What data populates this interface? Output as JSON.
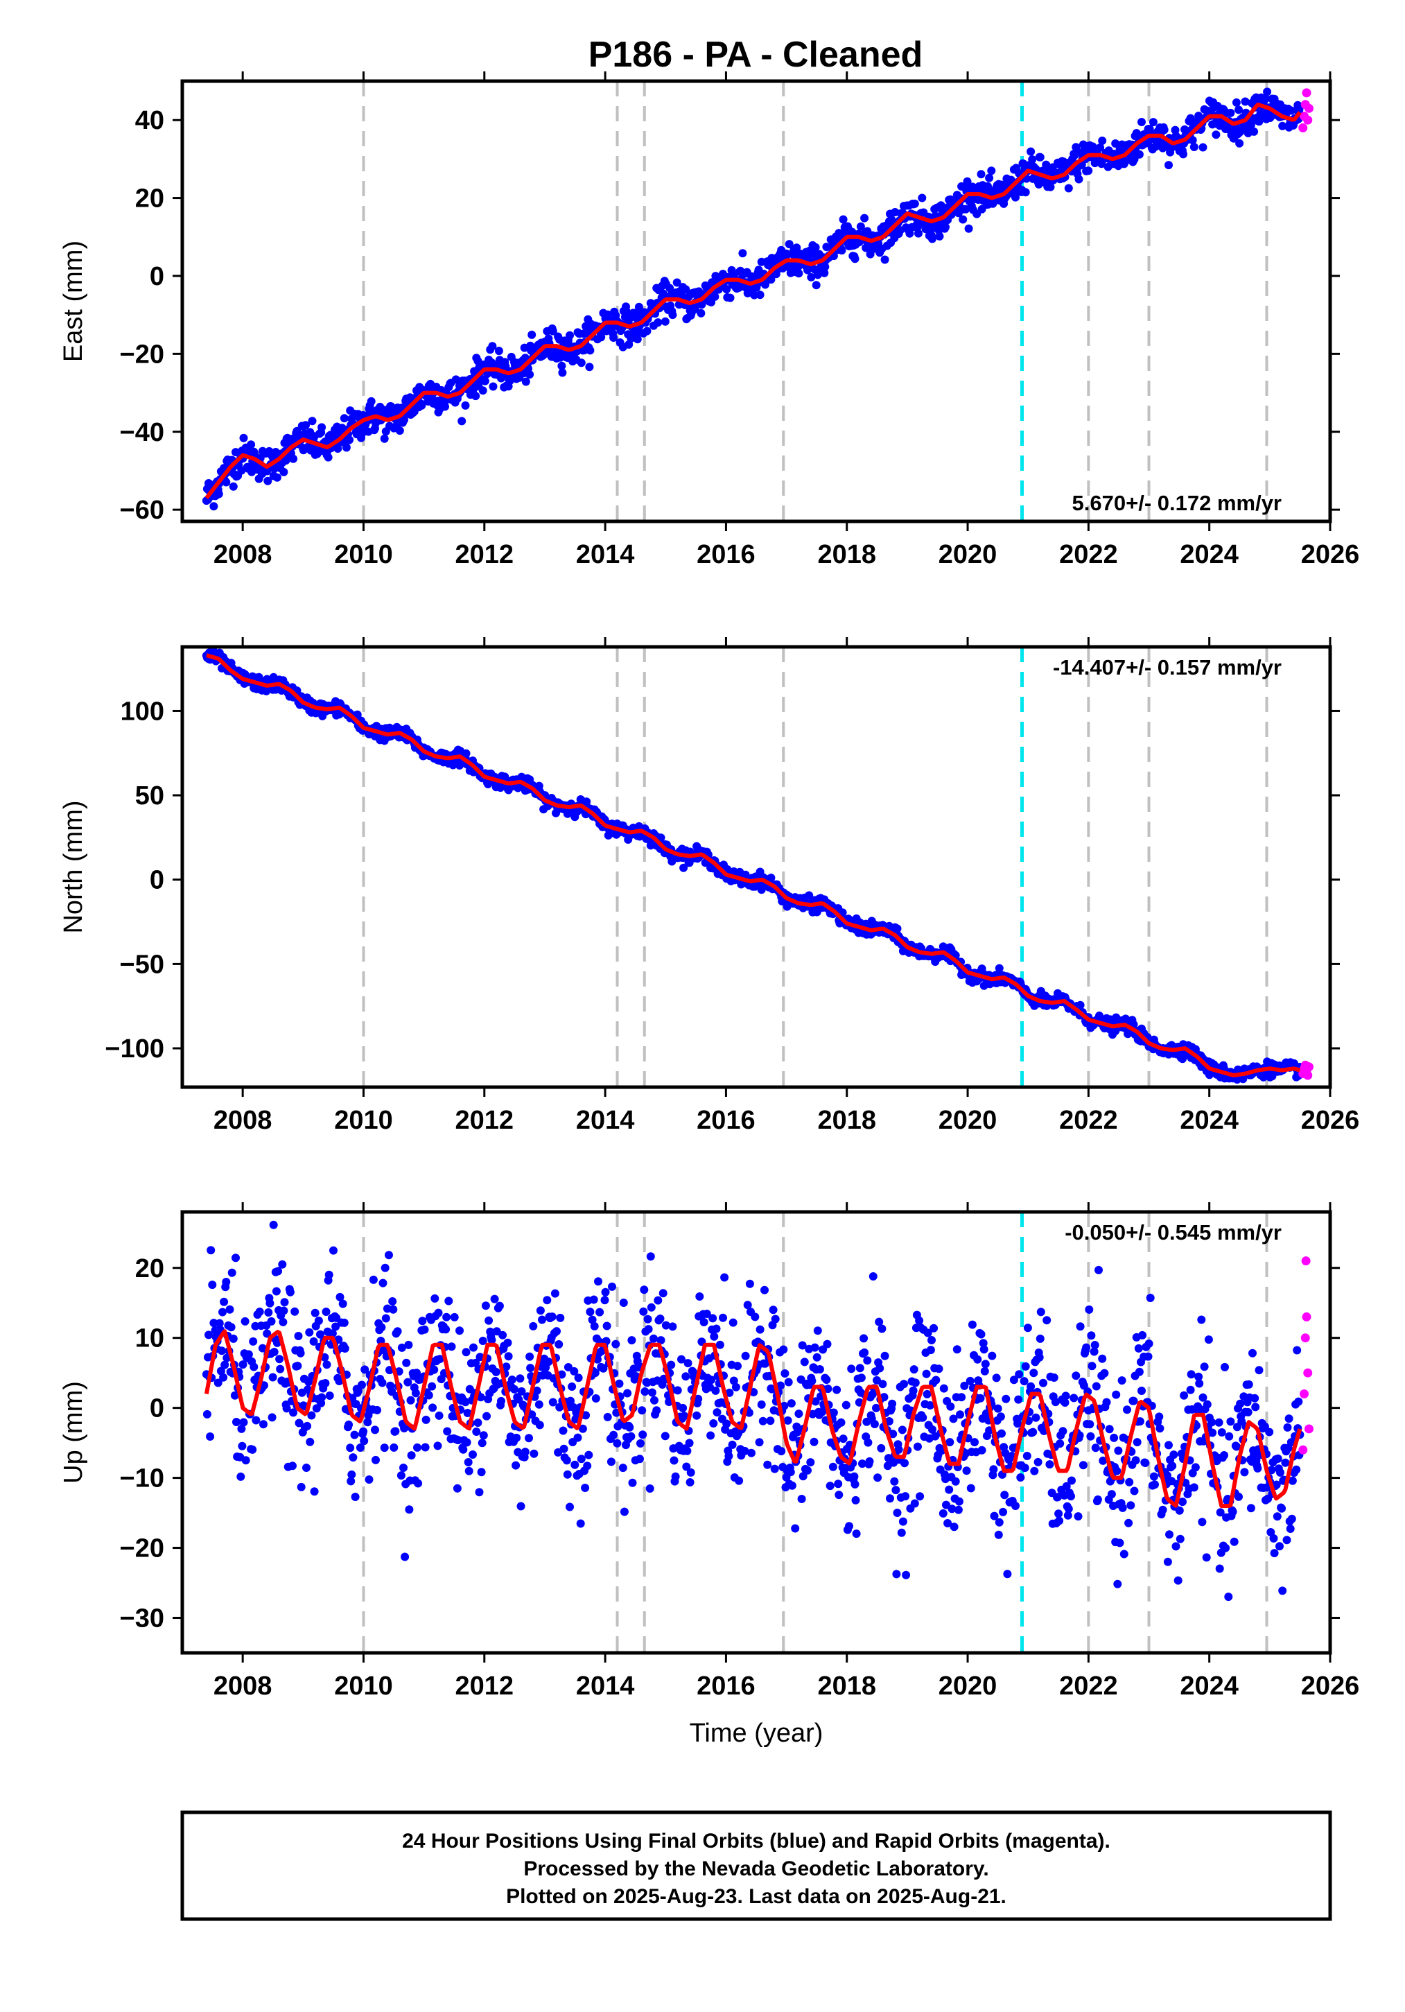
{
  "title": "P186  - PA - Cleaned",
  "footer": {
    "lines": [
      "24 Hour Positions Using Final Orbits (blue) and Rapid Orbits (magenta).",
      "Processed by the Nevada Geodetic Laboratory.",
      "Plotted on 2025-Aug-23. Last data on 2025-Aug-21."
    ]
  },
  "colors": {
    "final_points": "#0000ff",
    "rapid_points": "#ff00ff",
    "model_fit": "#ff0000",
    "event_lines": "#c0c0c0",
    "highlight_event": "#00e5ee"
  },
  "chart_data": [
    {
      "type": "scatter",
      "component": "east",
      "ylabel": "East (mm)",
      "xlabel": "",
      "xlim": [
        2007.0,
        2026.0
      ],
      "ylim": [
        -63,
        50
      ],
      "xticks": [
        2008,
        2010,
        2012,
        2014,
        2016,
        2018,
        2020,
        2022,
        2024,
        2026
      ],
      "yticks": [
        -60,
        -40,
        -20,
        0,
        20,
        40
      ],
      "rate_label": "5.670+/- 0.172 mm/yr",
      "rate_label_position": "bottom-right",
      "event_lines": [
        2010.0,
        2014.2,
        2014.65,
        2016.95,
        2022.0,
        2023.0,
        2024.95
      ],
      "highlight_line": 2020.9,
      "final_series": {
        "name": "Final Orbits",
        "x": [
          2007.4,
          2007.6,
          2007.8,
          2008.0,
          2008.2,
          2008.4,
          2008.6,
          2008.8,
          2009.0,
          2009.2,
          2009.4,
          2009.6,
          2009.8,
          2010.0,
          2010.2,
          2010.4,
          2010.6,
          2010.8,
          2011.0,
          2011.2,
          2011.4,
          2011.6,
          2011.8,
          2012.0,
          2012.2,
          2012.4,
          2012.6,
          2012.8,
          2013.0,
          2013.2,
          2013.4,
          2013.6,
          2013.8,
          2014.0,
          2014.2,
          2014.4,
          2014.6,
          2014.8,
          2015.0,
          2015.2,
          2015.4,
          2015.6,
          2015.8,
          2016.0,
          2016.2,
          2016.4,
          2016.6,
          2016.8,
          2017.0,
          2017.2,
          2017.4,
          2017.6,
          2017.8,
          2018.0,
          2018.2,
          2018.4,
          2018.6,
          2018.8,
          2019.0,
          2019.2,
          2019.4,
          2019.6,
          2019.8,
          2020.0,
          2020.2,
          2020.4,
          2020.6,
          2020.8,
          2021.0,
          2021.2,
          2021.4,
          2021.6,
          2021.8,
          2022.0,
          2022.2,
          2022.4,
          2022.6,
          2022.8,
          2023.0,
          2023.2,
          2023.4,
          2023.6,
          2023.8,
          2024.0,
          2024.2,
          2024.4,
          2024.6,
          2024.8,
          2025.0,
          2025.2,
          2025.4,
          2025.5
        ],
        "y": [
          -57,
          -53,
          -49,
          -46,
          -47,
          -49,
          -47,
          -44,
          -42,
          -43,
          -44,
          -42,
          -39,
          -37,
          -36,
          -37,
          -36,
          -33,
          -30,
          -30,
          -31,
          -30,
          -27,
          -24,
          -24,
          -25,
          -24,
          -21,
          -18,
          -18,
          -19,
          -18,
          -15,
          -12,
          -12,
          -13,
          -12,
          -9,
          -6,
          -6,
          -7,
          -6,
          -3,
          -1,
          -1,
          -2,
          -1,
          2,
          4,
          4,
          3,
          4,
          7,
          10,
          10,
          9,
          10,
          13,
          16,
          15,
          14,
          15,
          18,
          21,
          21,
          20,
          21,
          24,
          27,
          26,
          25,
          26,
          29,
          31,
          31,
          30,
          31,
          34,
          36,
          36,
          34,
          35,
          38,
          41,
          41,
          39,
          40,
          44,
          43,
          41,
          40,
          42
        ],
        "scatter_mm": 2.2
      },
      "rapid_series": {
        "name": "Rapid Orbits",
        "x": [
          2025.55,
          2025.57,
          2025.59,
          2025.61,
          2025.63,
          2025.65
        ],
        "y": [
          38,
          41,
          44,
          47,
          40,
          43
        ]
      }
    },
    {
      "type": "scatter",
      "component": "north",
      "ylabel": "North (mm)",
      "xlabel": "",
      "xlim": [
        2007.0,
        2026.0
      ],
      "ylim": [
        -123,
        138
      ],
      "xticks": [
        2008,
        2010,
        2012,
        2014,
        2016,
        2018,
        2020,
        2022,
        2024,
        2026
      ],
      "yticks": [
        -100,
        -50,
        0,
        50,
        100
      ],
      "rate_label": "-14.407+/- 0.157 mm/yr",
      "rate_label_position": "top-right",
      "event_lines": [
        2010.0,
        2014.2,
        2014.65,
        2016.95,
        2022.0,
        2023.0,
        2024.95
      ],
      "highlight_line": 2020.9,
      "final_series": {
        "name": "Final Orbits",
        "x": [
          2007.4,
          2007.6,
          2007.8,
          2008.0,
          2008.2,
          2008.4,
          2008.6,
          2008.8,
          2009.0,
          2009.2,
          2009.4,
          2009.6,
          2009.8,
          2010.0,
          2010.2,
          2010.4,
          2010.6,
          2010.8,
          2011.0,
          2011.2,
          2011.4,
          2011.6,
          2011.8,
          2012.0,
          2012.2,
          2012.4,
          2012.6,
          2012.8,
          2013.0,
          2013.2,
          2013.4,
          2013.6,
          2013.8,
          2014.0,
          2014.2,
          2014.4,
          2014.6,
          2014.8,
          2015.0,
          2015.2,
          2015.4,
          2015.6,
          2015.8,
          2016.0,
          2016.2,
          2016.4,
          2016.6,
          2016.8,
          2017.0,
          2017.2,
          2017.4,
          2017.6,
          2017.8,
          2018.0,
          2018.2,
          2018.4,
          2018.6,
          2018.8,
          2019.0,
          2019.2,
          2019.4,
          2019.6,
          2019.8,
          2020.0,
          2020.2,
          2020.4,
          2020.6,
          2020.8,
          2021.0,
          2021.2,
          2021.4,
          2021.6,
          2021.8,
          2022.0,
          2022.2,
          2022.4,
          2022.6,
          2022.8,
          2023.0,
          2023.2,
          2023.4,
          2023.6,
          2023.8,
          2024.0,
          2024.2,
          2024.4,
          2024.6,
          2024.8,
          2025.0,
          2025.2,
          2025.4,
          2025.5
        ],
        "y": [
          133,
          131,
          124,
          119,
          117,
          115,
          116,
          112,
          105,
          102,
          101,
          102,
          97,
          90,
          88,
          86,
          87,
          83,
          76,
          73,
          72,
          73,
          68,
          61,
          59,
          57,
          58,
          54,
          47,
          44,
          43,
          44,
          39,
          32,
          30,
          28,
          29,
          25,
          18,
          15,
          14,
          15,
          10,
          3,
          1,
          -1,
          0,
          -4,
          -11,
          -14,
          -15,
          -14,
          -19,
          -26,
          -28,
          -30,
          -29,
          -33,
          -40,
          -43,
          -44,
          -43,
          -48,
          -55,
          -57,
          -59,
          -58,
          -62,
          -69,
          -72,
          -73,
          -72,
          -77,
          -83,
          -85,
          -87,
          -86,
          -90,
          -97,
          -100,
          -101,
          -100,
          -105,
          -112,
          -114,
          -116,
          -115,
          -113,
          -112,
          -113,
          -112,
          -113
        ],
        "scatter_mm": 2.0
      },
      "rapid_series": {
        "name": "Rapid Orbits",
        "x": [
          2025.55,
          2025.57,
          2025.59,
          2025.61,
          2025.63,
          2025.65
        ],
        "y": [
          -115,
          -112,
          -110,
          -113,
          -116,
          -111
        ]
      }
    },
    {
      "type": "scatter",
      "component": "up",
      "ylabel": "Up (mm)",
      "xlabel": "Time (year)",
      "xlim": [
        2007.0,
        2026.0
      ],
      "ylim": [
        -35,
        28
      ],
      "xticks": [
        2008,
        2010,
        2012,
        2014,
        2016,
        2018,
        2020,
        2022,
        2024,
        2026
      ],
      "yticks": [
        -30,
        -20,
        -10,
        0,
        10,
        20
      ],
      "rate_label": "-0.050+/- 0.545 mm/yr",
      "rate_label_position": "top-right",
      "event_lines": [
        2010.0,
        2014.2,
        2014.65,
        2016.95,
        2022.0,
        2023.0,
        2024.95
      ],
      "highlight_line": 2020.9,
      "final_series": {
        "name": "Final Orbits",
        "x": [
          2007.4,
          2007.55,
          2007.7,
          2007.85,
          2008.0,
          2008.15,
          2008.3,
          2008.45,
          2008.6,
          2008.75,
          2008.9,
          2009.05,
          2009.2,
          2009.35,
          2009.5,
          2009.65,
          2009.8,
          2009.95,
          2010.1,
          2010.25,
          2010.4,
          2010.55,
          2010.7,
          2010.85,
          2011.0,
          2011.15,
          2011.3,
          2011.45,
          2011.6,
          2011.75,
          2011.9,
          2012.05,
          2012.2,
          2012.35,
          2012.5,
          2012.65,
          2012.8,
          2012.95,
          2013.1,
          2013.25,
          2013.4,
          2013.55,
          2013.7,
          2013.85,
          2014.0,
          2014.15,
          2014.3,
          2014.45,
          2014.6,
          2014.75,
          2014.9,
          2015.05,
          2015.2,
          2015.35,
          2015.5,
          2015.65,
          2015.8,
          2015.95,
          2016.1,
          2016.25,
          2016.4,
          2016.55,
          2016.7,
          2016.85,
          2017.0,
          2017.15,
          2017.3,
          2017.45,
          2017.6,
          2017.75,
          2017.9,
          2018.05,
          2018.2,
          2018.35,
          2018.5,
          2018.65,
          2018.8,
          2018.95,
          2019.1,
          2019.25,
          2019.4,
          2019.55,
          2019.7,
          2019.85,
          2020.0,
          2020.15,
          2020.3,
          2020.45,
          2020.6,
          2020.75,
          2020.9,
          2021.05,
          2021.2,
          2021.35,
          2021.5,
          2021.65,
          2021.8,
          2021.95,
          2022.1,
          2022.25,
          2022.4,
          2022.55,
          2022.7,
          2022.85,
          2023.0,
          2023.15,
          2023.3,
          2023.45,
          2023.6,
          2023.75,
          2023.9,
          2024.05,
          2024.2,
          2024.35,
          2024.5,
          2024.65,
          2024.8,
          2024.95,
          2025.1,
          2025.25,
          2025.4,
          2025.5
        ],
        "y": [
          2,
          9,
          11,
          6,
          0,
          -1,
          4,
          10,
          11,
          6,
          0,
          -1,
          4,
          10,
          10,
          5,
          -1,
          -2,
          3,
          9,
          9,
          4,
          -2,
          -3,
          3,
          9,
          9,
          3,
          -2,
          -3,
          3,
          9,
          9,
          3,
          -2,
          -3,
          3,
          9,
          9,
          3,
          -2,
          -3,
          3,
          9,
          9,
          3,
          -2,
          -1,
          5,
          9,
          9,
          4,
          -2,
          -3,
          3,
          9,
          9,
          3,
          -2,
          -3,
          3,
          9,
          8,
          2,
          -5,
          -8,
          -3,
          3,
          3,
          -3,
          -7,
          -8,
          -2,
          3,
          3,
          -3,
          -7,
          -7,
          -1,
          3,
          3,
          -3,
          -8,
          -8,
          -2,
          3,
          3,
          -4,
          -9,
          -9,
          -3,
          2,
          2,
          -4,
          -9,
          -9,
          -3,
          2,
          1,
          -5,
          -10,
          -10,
          -4,
          1,
          0,
          -7,
          -13,
          -14,
          -8,
          -1,
          -1,
          -8,
          -14,
          -14,
          -7,
          -2,
          -3,
          -9,
          -13,
          -12,
          -6,
          -3
        ],
        "scatter_mm": 6.0
      },
      "rapid_series": {
        "name": "Rapid Orbits",
        "x": [
          2025.55,
          2025.57,
          2025.59,
          2025.61,
          2025.63,
          2025.65,
          2025.6
        ],
        "y": [
          -6,
          2,
          10,
          13,
          5,
          -3,
          21
        ]
      }
    }
  ]
}
